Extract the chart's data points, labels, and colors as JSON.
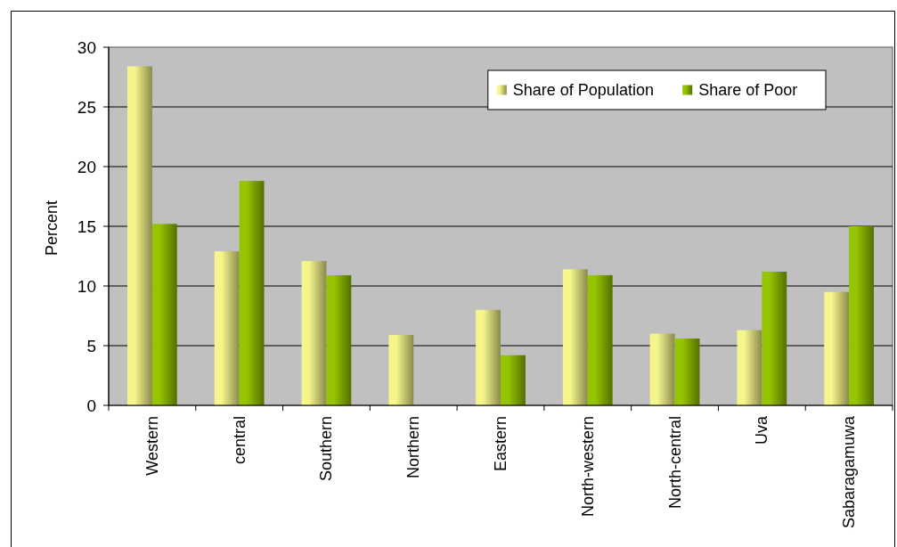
{
  "chart_data": {
    "type": "bar",
    "ylabel": "Percent",
    "categories": [
      "Western",
      "central",
      "Southern",
      "Northern",
      "Eastern",
      "North-western",
      "North-central",
      "Uva",
      "Sabaragamuwa"
    ],
    "series": [
      {
        "name": "Share of Population",
        "color": "#f5f58c",
        "values": [
          28.4,
          12.9,
          12.1,
          5.9,
          8.0,
          11.4,
          6.0,
          6.3,
          9.5
        ]
      },
      {
        "name": "Share of Poor",
        "color": "#95c400",
        "values": [
          15.2,
          18.8,
          10.9,
          null,
          4.2,
          10.9,
          5.6,
          11.2,
          15.0
        ]
      }
    ],
    "ylim": [
      0,
      30
    ],
    "yticks": [
      0,
      5,
      10,
      15,
      20,
      25,
      30
    ],
    "grid": "y",
    "legend": "top right"
  }
}
